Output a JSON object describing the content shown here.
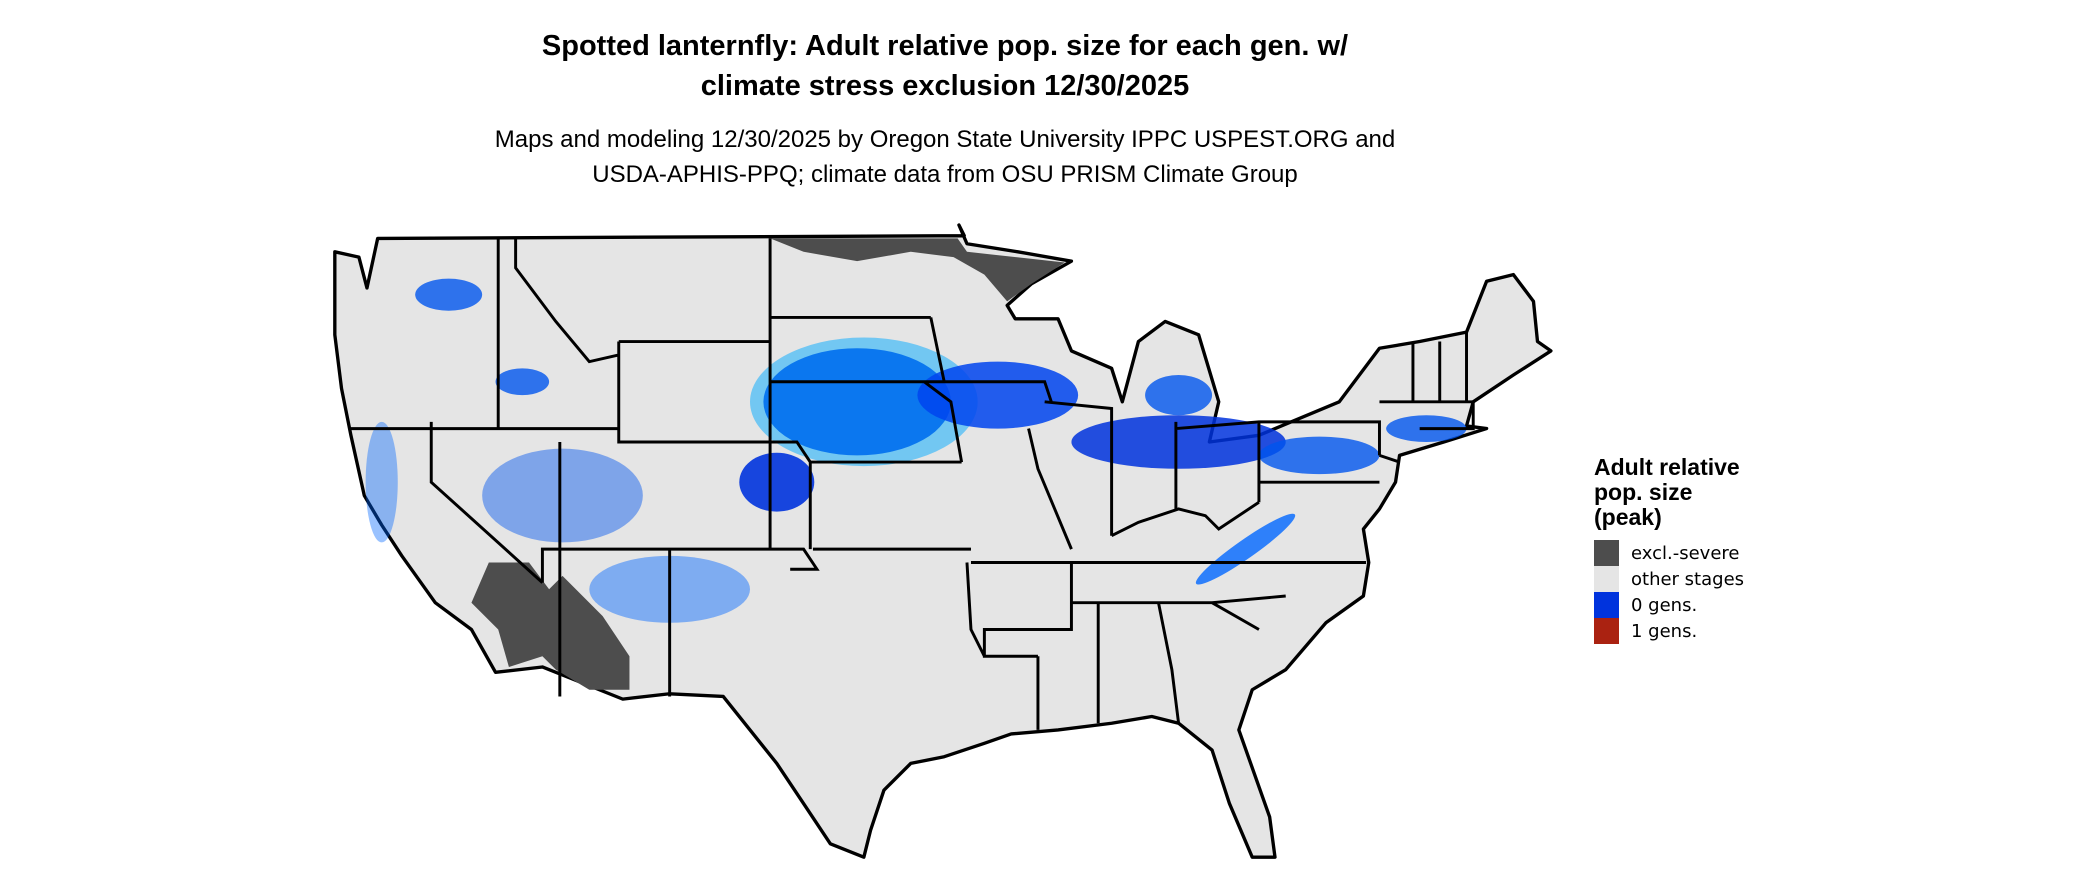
{
  "title": {
    "line1": "Spotted lanternfly: Adult relative pop. size for each gen. w/",
    "line2": "climate stress exclusion 12/30/2025"
  },
  "subtitle": {
    "line1": "Maps and modeling 12/30/2025 by Oregon State University IPPC USPEST.ORG and",
    "line2": "USDA-APHIS-PPQ; climate data from OSU PRISM Climate Group"
  },
  "legend": {
    "title_line1": "Adult relative",
    "title_line2": "pop. size",
    "title_line3": "(peak)",
    "items": [
      {
        "label": "excl.-severe",
        "color": "#4d4d4d"
      },
      {
        "label": "other stages",
        "color": "#e5e5e5"
      },
      {
        "label": "0 gens.",
        "color": "#0033dd"
      },
      {
        "label": "1 gens.",
        "color": "#aa2211"
      }
    ]
  },
  "map_colors": {
    "land": "#e5e5e5",
    "excluded": "#4d4d4d",
    "zero_gens_dark": "#0022cc",
    "zero_gens_mid": "#0055ee",
    "zero_gens_light": "#00aaff",
    "borders": "#000000"
  }
}
